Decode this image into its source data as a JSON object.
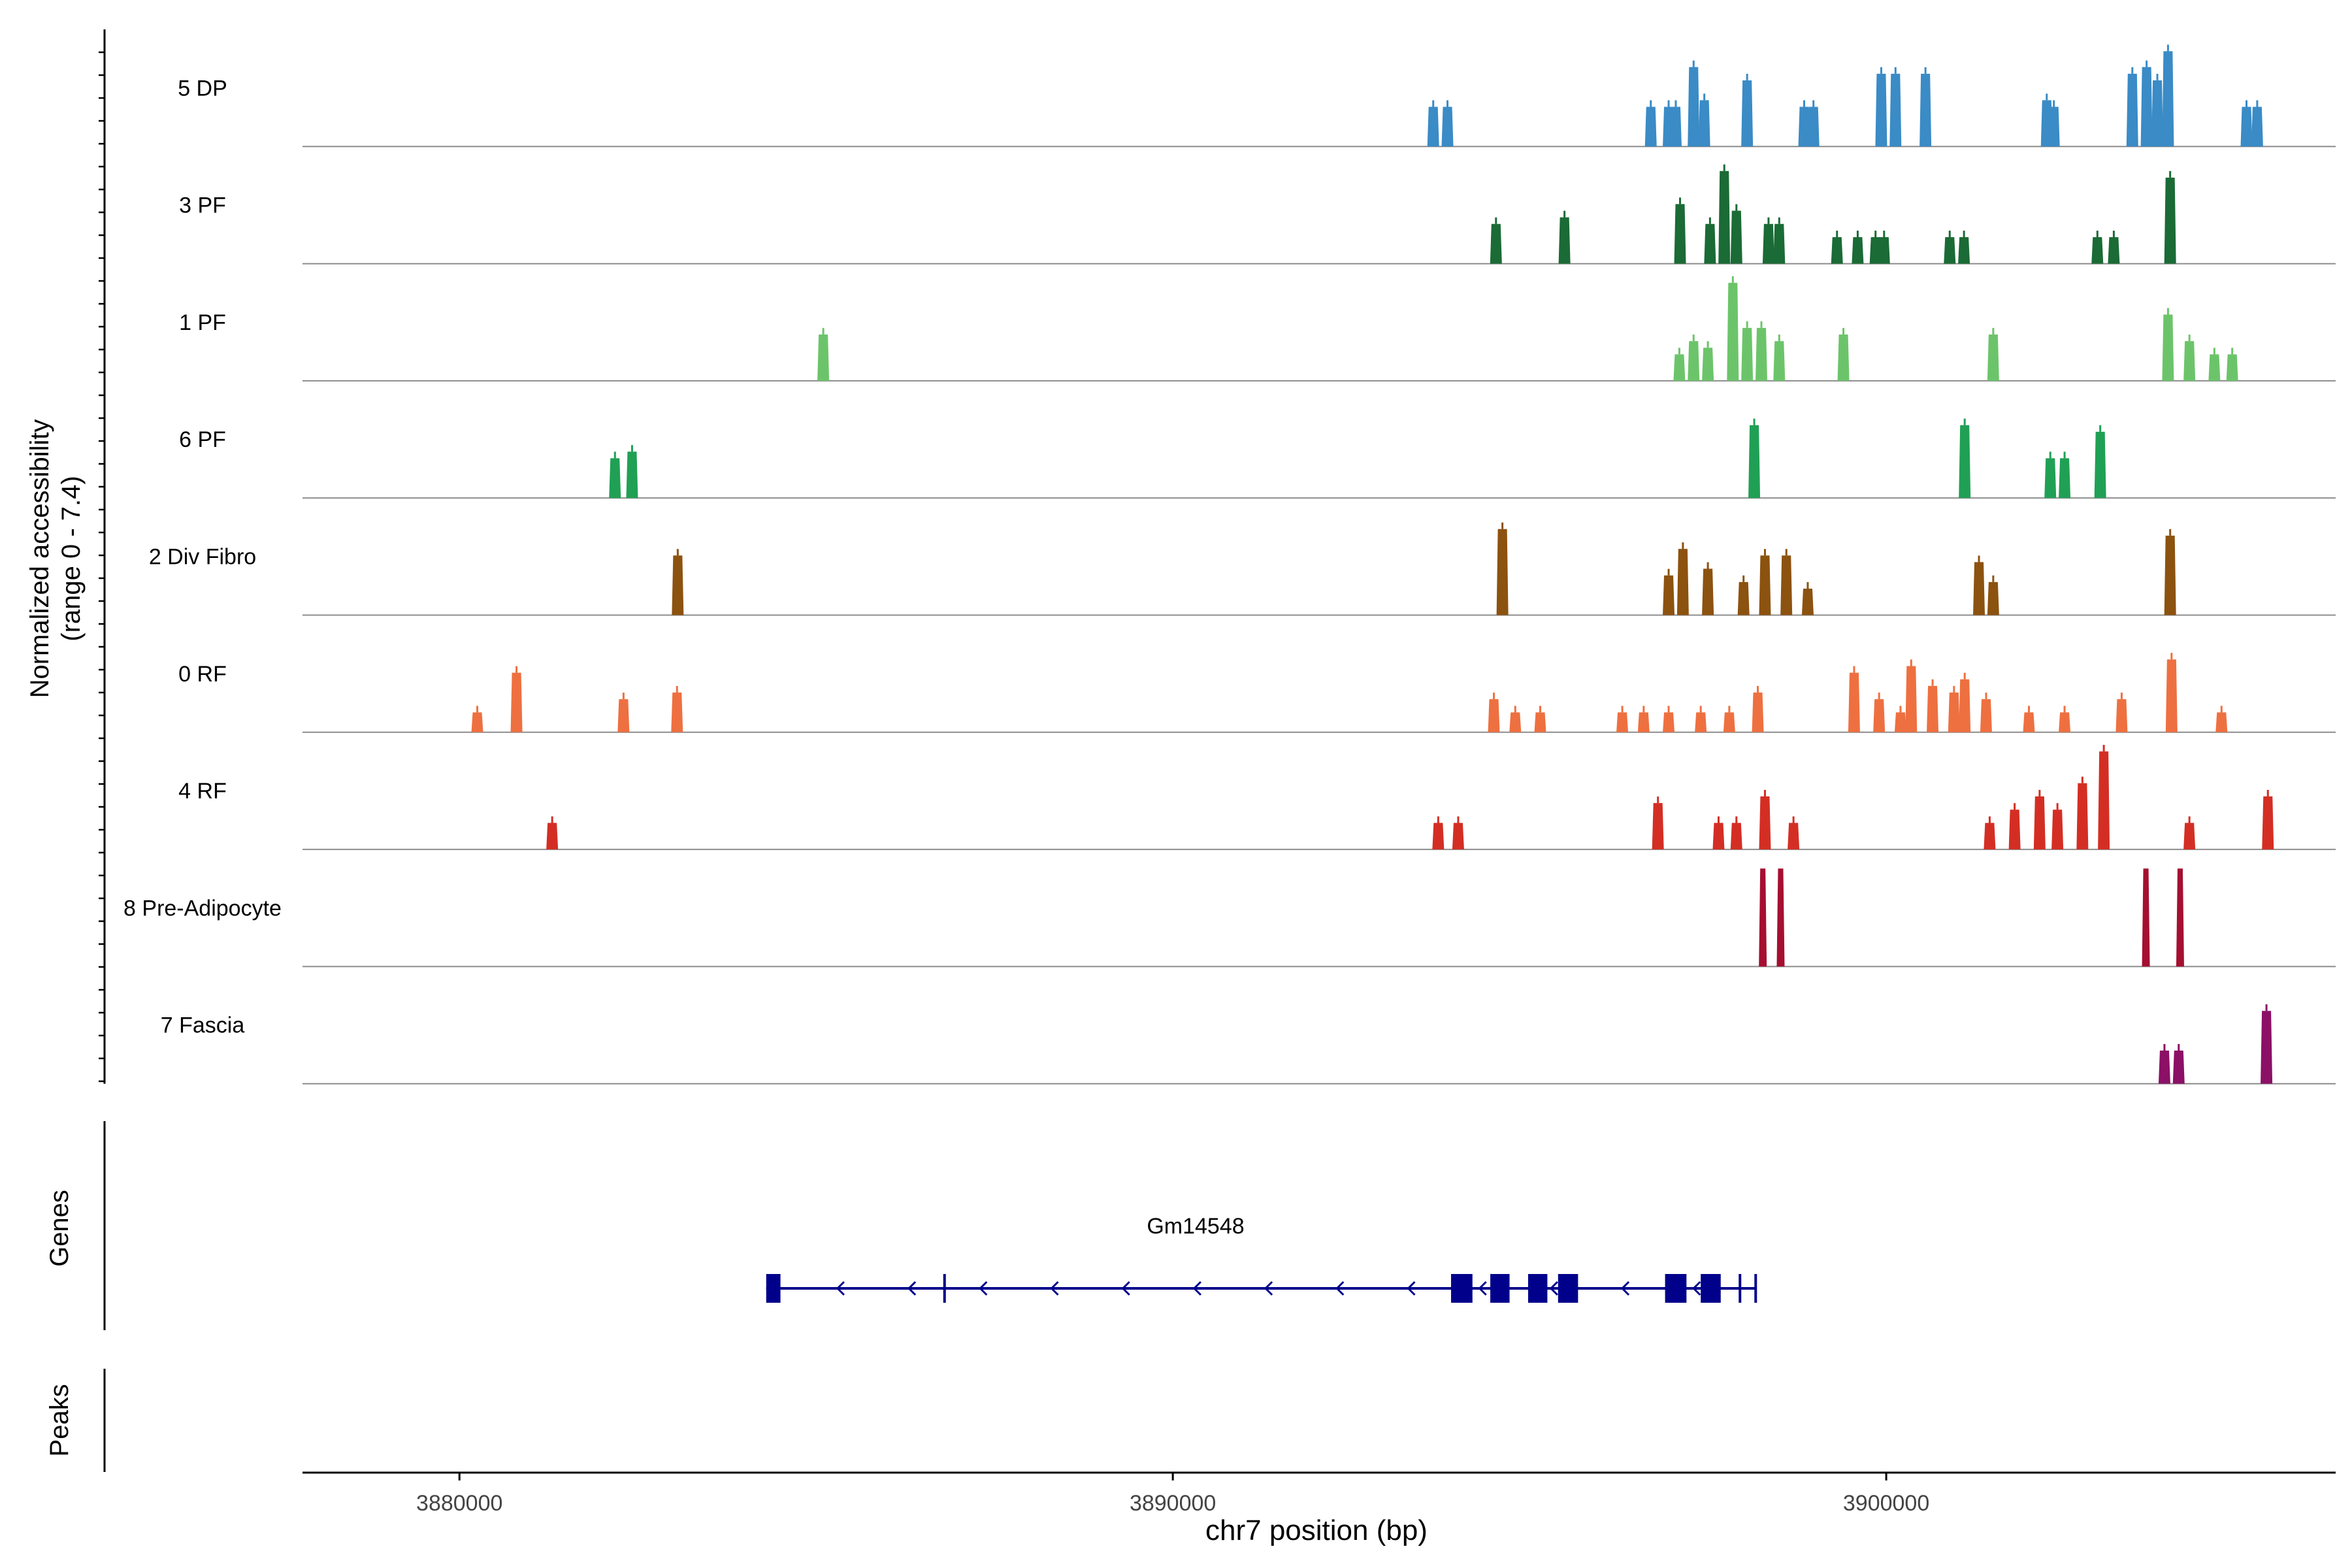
{
  "chart_data": {
    "type": "coverage",
    "ylabel": "Normalized accessibility",
    "ylabel_range": "(range 0 - 7.4)",
    "y_range": [
      0,
      7.4
    ],
    "xlabel": "chr7 position (bp)",
    "x_range": [
      3877800,
      3906300
    ],
    "x_ticks": [
      3880000,
      3890000,
      3900000
    ],
    "x_tick_labels": [
      "3880000",
      "3890000",
      "3900000"
    ],
    "tracks": [
      {
        "name": "5 DP",
        "color": "#3a8bc6",
        "peaks": [
          [
            3893650,
            3.0
          ],
          [
            3893850,
            3.0
          ],
          [
            3896700,
            3.0
          ],
          [
            3896950,
            3.0
          ],
          [
            3897050,
            3.0
          ],
          [
            3897300,
            6.0
          ],
          [
            3897450,
            3.5
          ],
          [
            3898050,
            5.0
          ],
          [
            3898850,
            3.0
          ],
          [
            3898980,
            3.0
          ],
          [
            3899930,
            5.5
          ],
          [
            3900130,
            5.5
          ],
          [
            3900550,
            5.5
          ],
          [
            3902250,
            3.5
          ],
          [
            3902350,
            3.0
          ],
          [
            3903450,
            5.5
          ],
          [
            3903650,
            6.0
          ],
          [
            3903800,
            5.0
          ],
          [
            3903950,
            7.2
          ],
          [
            3905050,
            3.0
          ],
          [
            3905200,
            3.0
          ]
        ]
      },
      {
        "name": "3 PF",
        "color": "#1a6b35",
        "peaks": [
          [
            3894530,
            3.0
          ],
          [
            3895490,
            3.5
          ],
          [
            3897110,
            4.5
          ],
          [
            3897530,
            3.0
          ],
          [
            3897730,
            7.0
          ],
          [
            3897900,
            4.0
          ],
          [
            3898350,
            3.0
          ],
          [
            3898500,
            3.0
          ],
          [
            3899310,
            2.0
          ],
          [
            3899600,
            2.0
          ],
          [
            3899850,
            2.0
          ],
          [
            3899970,
            2.0
          ],
          [
            3900890,
            2.0
          ],
          [
            3901090,
            2.0
          ],
          [
            3902960,
            2.0
          ],
          [
            3903190,
            2.0
          ],
          [
            3903980,
            6.5
          ]
        ]
      },
      {
        "name": "1 PF",
        "color": "#6cc46a",
        "peaks": [
          [
            3885100,
            3.5
          ],
          [
            3897100,
            2.0
          ],
          [
            3897300,
            3.0
          ],
          [
            3897500,
            2.5
          ],
          [
            3897850,
            7.4
          ],
          [
            3898050,
            4.0
          ],
          [
            3898250,
            4.0
          ],
          [
            3898500,
            3.0
          ],
          [
            3899400,
            3.5
          ],
          [
            3901500,
            3.5
          ],
          [
            3903950,
            5.0
          ],
          [
            3904250,
            3.0
          ],
          [
            3904600,
            2.0
          ],
          [
            3904850,
            2.0
          ]
        ]
      },
      {
        "name": "6 PF",
        "color": "#20a055",
        "peaks": [
          [
            3882180,
            3.0
          ],
          [
            3882420,
            3.5
          ],
          [
            3898150,
            5.5
          ],
          [
            3901100,
            5.5
          ],
          [
            3902300,
            3.0
          ],
          [
            3902500,
            3.0
          ],
          [
            3903000,
            5.0
          ]
        ]
      },
      {
        "name": "2 Div Fibro",
        "color": "#8c520f",
        "peaks": [
          [
            3883060,
            4.5
          ],
          [
            3894620,
            6.5
          ],
          [
            3896950,
            3.0
          ],
          [
            3897150,
            5.0
          ],
          [
            3897500,
            3.5
          ],
          [
            3898000,
            2.5
          ],
          [
            3898300,
            4.5
          ],
          [
            3898600,
            4.5
          ],
          [
            3898900,
            2.0
          ],
          [
            3901300,
            4.0
          ],
          [
            3901500,
            2.5
          ],
          [
            3903980,
            6.0
          ]
        ]
      },
      {
        "name": "0 RF",
        "color": "#ee7040",
        "peaks": [
          [
            3880250,
            1.5
          ],
          [
            3880800,
            4.5
          ],
          [
            3882300,
            2.5
          ],
          [
            3883050,
            3.0
          ],
          [
            3894500,
            2.5
          ],
          [
            3894800,
            1.5
          ],
          [
            3895150,
            1.5
          ],
          [
            3896300,
            1.5
          ],
          [
            3896600,
            1.5
          ],
          [
            3896950,
            1.5
          ],
          [
            3897400,
            1.5
          ],
          [
            3897800,
            1.5
          ],
          [
            3898200,
            3.0
          ],
          [
            3899550,
            4.5
          ],
          [
            3899900,
            2.5
          ],
          [
            3900200,
            1.5
          ],
          [
            3900350,
            5.0
          ],
          [
            3900650,
            3.5
          ],
          [
            3900950,
            3.0
          ],
          [
            3901100,
            4.0
          ],
          [
            3901400,
            2.5
          ],
          [
            3902000,
            1.5
          ],
          [
            3902500,
            1.5
          ],
          [
            3903300,
            2.5
          ],
          [
            3904000,
            5.5
          ],
          [
            3904700,
            1.5
          ]
        ]
      },
      {
        "name": "4 RF",
        "color": "#d42e24",
        "peaks": [
          [
            3881300,
            2.0
          ],
          [
            3893720,
            2.0
          ],
          [
            3894000,
            2.0
          ],
          [
            3896800,
            3.5
          ],
          [
            3897650,
            2.0
          ],
          [
            3897900,
            2.0
          ],
          [
            3898300,
            4.0
          ],
          [
            3898700,
            2.0
          ],
          [
            3901450,
            2.0
          ],
          [
            3901800,
            3.0
          ],
          [
            3902150,
            4.0
          ],
          [
            3902400,
            3.0
          ],
          [
            3902750,
            5.0
          ],
          [
            3903050,
            7.4
          ],
          [
            3904250,
            2.0
          ],
          [
            3905350,
            4.0
          ]
        ]
      },
      {
        "name": "8 Pre-Adipocyte",
        "color": "#a50f30",
        "peaks": [
          [
            3898270,
            7.4
          ],
          [
            3898520,
            7.4
          ],
          [
            3903640,
            7.4
          ],
          [
            3904120,
            7.4
          ]
        ]
      },
      {
        "name": "7 Fascia",
        "color": "#8b1066",
        "peaks": [
          [
            3903900,
            2.5
          ],
          [
            3904100,
            2.5
          ],
          [
            3905330,
            5.5
          ]
        ]
      }
    ]
  },
  "genes_label": "Genes",
  "peaks_label": "Peaks",
  "gene": {
    "name": "Gm14548",
    "strand": "-",
    "start": 3884300,
    "end": 3898170,
    "color": "#00008b",
    "exons": [
      [
        3884300,
        3884500
      ],
      [
        3893900,
        3894200
      ],
      [
        3894450,
        3894720
      ],
      [
        3894980,
        3895250
      ],
      [
        3895400,
        3895680
      ],
      [
        3896900,
        3897200
      ],
      [
        3897400,
        3897680
      ]
    ],
    "ticks": [
      3886800,
      3897950,
      3898170
    ]
  }
}
